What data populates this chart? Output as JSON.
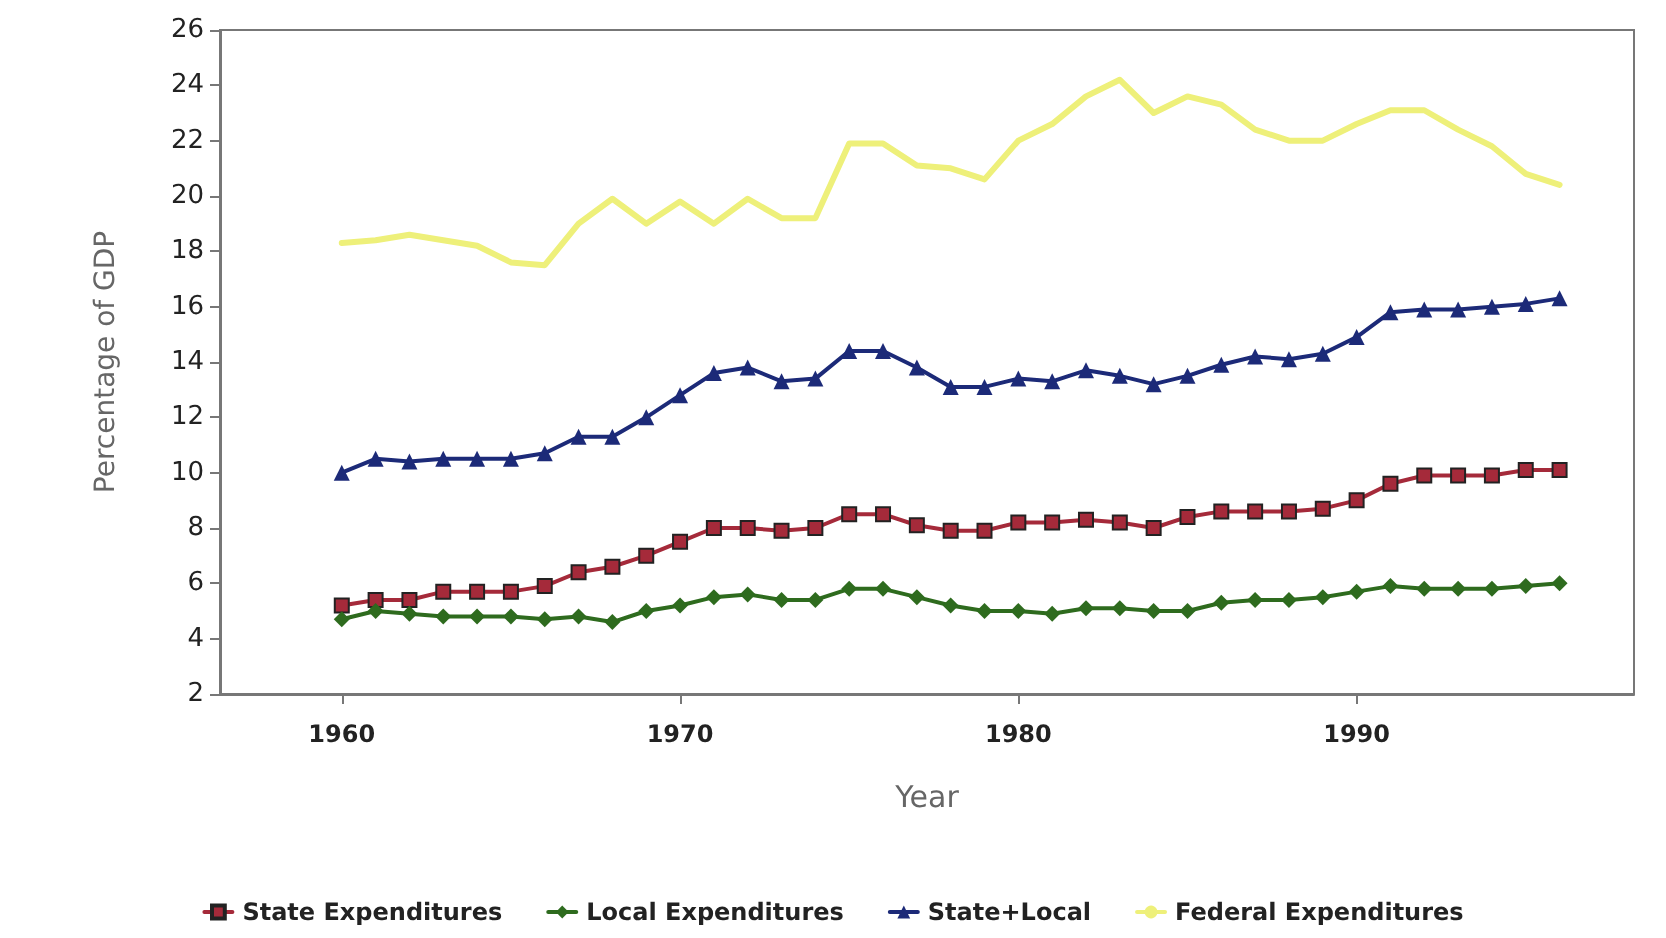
{
  "chart_data": {
    "type": "line",
    "xlabel": "Year",
    "ylabel": "Percentage of GDP",
    "x": [
      1960,
      1961,
      1962,
      1963,
      1964,
      1965,
      1966,
      1967,
      1968,
      1969,
      1970,
      1971,
      1972,
      1973,
      1974,
      1975,
      1976,
      1977,
      1978,
      1979,
      1980,
      1981,
      1982,
      1983,
      1984,
      1985,
      1986,
      1987,
      1988,
      1989,
      1990,
      1991,
      1992,
      1993,
      1994,
      1995,
      1996
    ],
    "series": [
      {
        "name": "State Expenditures",
        "color": "#a52a3a",
        "marker": "square",
        "values": [
          5.2,
          5.4,
          5.4,
          5.7,
          5.7,
          5.7,
          5.9,
          6.4,
          6.6,
          7.0,
          7.5,
          8.0,
          8.0,
          7.9,
          8.0,
          8.5,
          8.5,
          8.1,
          7.9,
          7.9,
          8.2,
          8.2,
          8.3,
          8.2,
          8.0,
          8.4,
          8.6,
          8.6,
          8.6,
          8.7,
          9.0,
          9.6,
          9.9,
          9.9,
          9.9,
          10.1,
          10.1
        ]
      },
      {
        "name": "Local Expenditures",
        "color": "#2e6b1e",
        "marker": "diamond",
        "values": [
          4.7,
          5.0,
          4.9,
          4.8,
          4.8,
          4.8,
          4.7,
          4.8,
          4.6,
          5.0,
          5.2,
          5.5,
          5.6,
          5.4,
          5.4,
          5.8,
          5.8,
          5.5,
          5.2,
          5.0,
          5.0,
          4.9,
          5.1,
          5.1,
          5.0,
          5.0,
          5.3,
          5.4,
          5.4,
          5.5,
          5.7,
          5.9,
          5.8,
          5.8,
          5.8,
          5.9,
          6.0
        ]
      },
      {
        "name": "State+Local",
        "color": "#1c2a78",
        "marker": "triangle",
        "values": [
          10.0,
          10.5,
          10.4,
          10.5,
          10.5,
          10.5,
          10.7,
          11.3,
          11.3,
          12.0,
          12.8,
          13.6,
          13.8,
          13.3,
          13.4,
          14.4,
          14.4,
          13.8,
          13.1,
          13.1,
          13.4,
          13.3,
          13.7,
          13.5,
          13.2,
          13.5,
          13.9,
          14.2,
          14.1,
          14.3,
          14.9,
          15.8,
          15.9,
          15.9,
          16.0,
          16.1,
          16.3
        ]
      },
      {
        "name": "Federal Expenditures",
        "color": "#eef07a",
        "marker": "none",
        "values": [
          18.3,
          18.4,
          18.6,
          18.4,
          18.2,
          17.6,
          17.5,
          19.0,
          19.9,
          19.0,
          19.8,
          19.0,
          19.9,
          19.2,
          19.2,
          21.9,
          21.9,
          21.1,
          21.0,
          20.6,
          22.0,
          22.6,
          23.6,
          24.2,
          23.0,
          23.6,
          23.3,
          22.4,
          22.0,
          22.0,
          22.6,
          23.1,
          23.1,
          22.4,
          21.8,
          20.8,
          20.4
        ]
      }
    ],
    "xlim": [
      1956.4,
      1998.2
    ],
    "xticks": [
      1960,
      1970,
      1980,
      1990
    ],
    "ylim": [
      2,
      26
    ],
    "yticks": [
      2,
      4,
      6,
      8,
      10,
      12,
      14,
      16,
      18,
      20,
      22,
      24,
      26
    ],
    "grid": false,
    "legend": "bottom",
    "line_style": "solid"
  }
}
